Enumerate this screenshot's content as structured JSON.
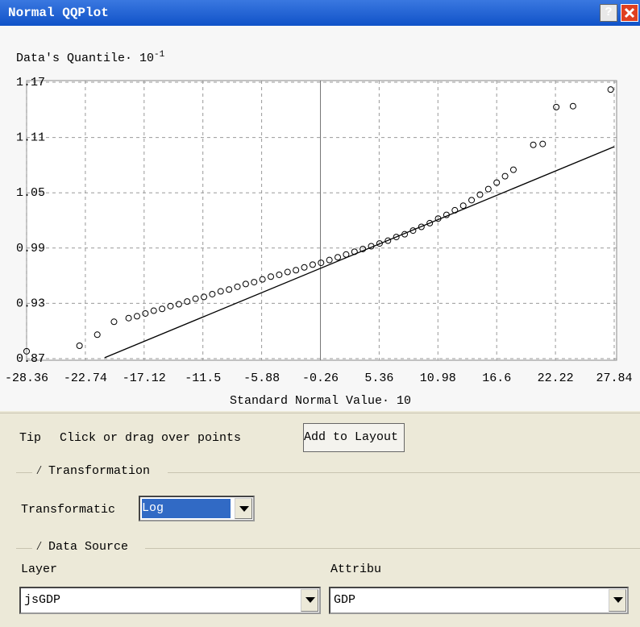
{
  "window": {
    "title": "Normal QQPlot",
    "help": "?"
  },
  "chart_data": {
    "type": "scatter",
    "y_label": {
      "text": "Data's Quantile· 10",
      "exponent": "-1"
    },
    "x_label": "Standard Normal Value· 10",
    "xlim": [
      -28.36,
      27.84
    ],
    "ylim": [
      0.87,
      1.17
    ],
    "xticks": [
      -28.36,
      -22.74,
      -17.12,
      -11.5,
      -5.88,
      -0.26,
      5.36,
      10.98,
      16.6,
      22.22,
      27.84
    ],
    "yticks": [
      0.87,
      0.93,
      0.99,
      1.05,
      1.11,
      1.17
    ],
    "grid": true,
    "series": [
      {
        "color": "#000000",
        "x": [
          -28.36,
          -23.3,
          -21.6,
          -20.0,
          -18.6,
          -17.8,
          -17.0,
          -16.2,
          -15.4,
          -14.6,
          -13.8,
          -13.0,
          -12.2,
          -11.4,
          -10.6,
          -9.8,
          -9.0,
          -8.2,
          -7.4,
          -6.6,
          -5.8,
          -5.0,
          -4.2,
          -3.4,
          -2.6,
          -1.8,
          -1.0,
          -0.2,
          0.6,
          1.4,
          2.2,
          3.0,
          3.8,
          4.6,
          5.4,
          6.2,
          7.0,
          7.8,
          8.6,
          9.4,
          10.2,
          11.0,
          11.8,
          12.6,
          13.4,
          14.2,
          15.0,
          15.8,
          16.6,
          17.4,
          18.2,
          20.1,
          21.0,
          22.3,
          23.9,
          27.5
        ],
        "values": [
          0.878,
          0.884,
          0.896,
          0.91,
          0.914,
          0.916,
          0.919,
          0.922,
          0.924,
          0.927,
          0.929,
          0.932,
          0.935,
          0.937,
          0.94,
          0.943,
          0.945,
          0.948,
          0.951,
          0.953,
          0.956,
          0.959,
          0.961,
          0.964,
          0.966,
          0.969,
          0.972,
          0.974,
          0.977,
          0.98,
          0.983,
          0.986,
          0.989,
          0.992,
          0.995,
          0.998,
          1.002,
          1.005,
          1.009,
          1.013,
          1.017,
          1.022,
          1.026,
          1.031,
          1.036,
          1.042,
          1.048,
          1.054,
          1.061,
          1.068,
          1.075,
          1.102,
          1.103,
          1.143,
          1.144,
          1.162
        ]
      }
    ],
    "fit_line": {
      "color": "#000000",
      "x": [
        -20.9,
        27.84
      ],
      "y": [
        0.871,
        1.1
      ]
    }
  },
  "controls": {
    "tip_label": "Tip",
    "tip_text": "Click or drag over points",
    "add_button": "Add to Layout",
    "transformation_group": "Transformation",
    "transformation_label": "Transformatic",
    "transformation_value": "Log",
    "data_source_group": "Data Source",
    "layer_label": "Layer",
    "layer_value": "jsGDP",
    "attribute_label": "Attribu",
    "attribute_value": "GDP"
  }
}
